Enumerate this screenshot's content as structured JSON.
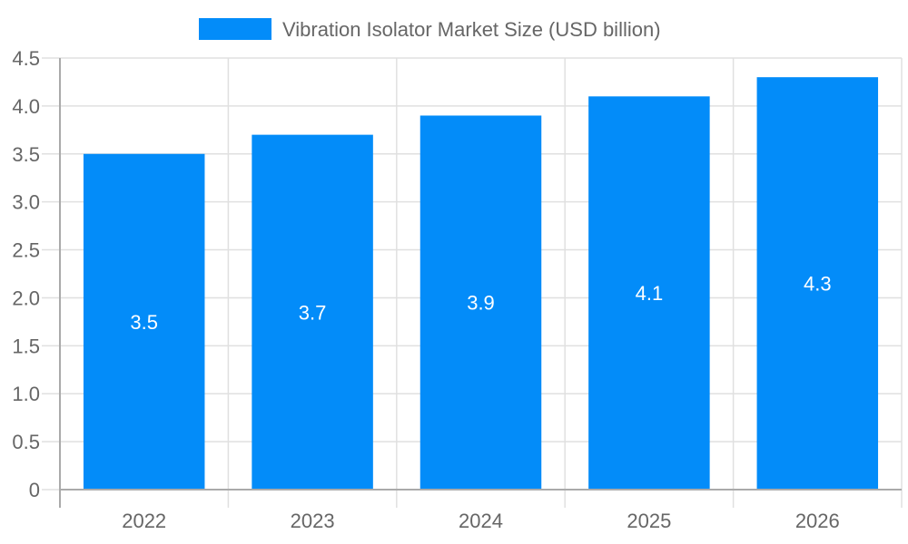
{
  "chart_data": {
    "type": "bar",
    "title": "",
    "categories": [
      "2022",
      "2023",
      "2024",
      "2025",
      "2026"
    ],
    "series": [
      {
        "name": "Vibration Isolator Market  Size (USD billion)",
        "values": [
          3.5,
          3.7,
          3.9,
          4.1,
          4.3
        ],
        "color": "#038cf9"
      }
    ],
    "xlabel": "",
    "ylabel": "",
    "ylim": [
      0,
      4.5
    ],
    "yticks": [
      "0",
      "0.5",
      "1.0",
      "1.5",
      "2.0",
      "2.5",
      "3.0",
      "3.5",
      "4.0",
      "4.5"
    ],
    "grid": true,
    "legend_position": "top",
    "data_labels": [
      "3.5",
      "3.7",
      "3.9",
      "4.1",
      "4.3"
    ]
  },
  "legend": {
    "label": "Vibration Isolator Market  Size (USD billion)",
    "color": "#038cf9"
  }
}
